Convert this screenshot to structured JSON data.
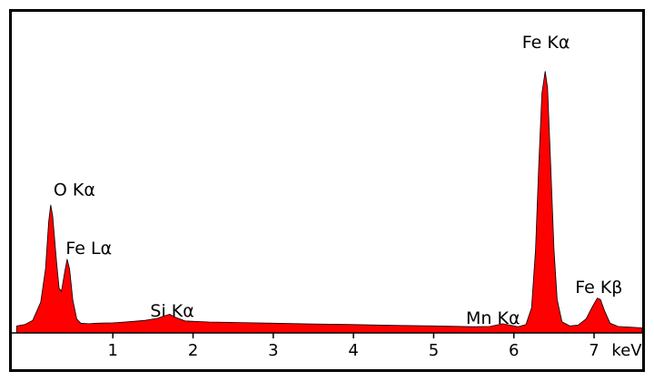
{
  "chart_data": {
    "type": "area",
    "title": "",
    "xlabel": "keV",
    "ylabel": "",
    "xlim": [
      -0.26,
      7.6
    ],
    "ylim": [
      0,
      100
    ],
    "grid": false,
    "legend": "none",
    "colors": {
      "fill": "#ff0000",
      "stroke": "#000000",
      "frame": "#000000"
    },
    "xticks": [
      1,
      2,
      3,
      4,
      5,
      6,
      7
    ],
    "peaks_labels": [
      {
        "text": "O Kα",
        "x": 0.52,
        "y": 48
      },
      {
        "text": "Fe Lα",
        "x": 0.7,
        "y": 27
      },
      {
        "text": "Si Kα",
        "x": 1.74,
        "y": 4.5
      },
      {
        "text": "Mn Kα",
        "x": 5.74,
        "y": 2
      },
      {
        "text": "Fe Kα",
        "x": 6.4,
        "y": 101
      },
      {
        "text": "Fe Kβ",
        "x": 7.06,
        "y": 13
      }
    ],
    "series": [
      {
        "values": [
          [
            -0.2,
            2.5
          ],
          [
            -0.1,
            3
          ],
          [
            0.0,
            4.5
          ],
          [
            0.1,
            11
          ],
          [
            0.16,
            23
          ],
          [
            0.2,
            40
          ],
          [
            0.225,
            46
          ],
          [
            0.25,
            42
          ],
          [
            0.3,
            25
          ],
          [
            0.33,
            16
          ],
          [
            0.36,
            15
          ],
          [
            0.4,
            22
          ],
          [
            0.43,
            26.5
          ],
          [
            0.46,
            23
          ],
          [
            0.5,
            12
          ],
          [
            0.55,
            5
          ],
          [
            0.6,
            3.5
          ],
          [
            0.7,
            3.3
          ],
          [
            0.8,
            3.5
          ],
          [
            1.0,
            3.6
          ],
          [
            1.2,
            4
          ],
          [
            1.4,
            4.5
          ],
          [
            1.55,
            5.2
          ],
          [
            1.65,
            6.2
          ],
          [
            1.71,
            6.7
          ],
          [
            1.78,
            5.6
          ],
          [
            1.9,
            4.3
          ],
          [
            2.2,
            3.9
          ],
          [
            2.6,
            3.7
          ],
          [
            3.0,
            3.5
          ],
          [
            3.5,
            3.2
          ],
          [
            4.0,
            3
          ],
          [
            4.5,
            2.7
          ],
          [
            5.0,
            2.5
          ],
          [
            5.5,
            2.2
          ],
          [
            5.7,
            2.3
          ],
          [
            5.86,
            3.3
          ],
          [
            5.95,
            2.8
          ],
          [
            6.05,
            2.2
          ],
          [
            6.15,
            3
          ],
          [
            6.22,
            9
          ],
          [
            6.27,
            30
          ],
          [
            6.31,
            60
          ],
          [
            6.35,
            86
          ],
          [
            6.39,
            94
          ],
          [
            6.42,
            88
          ],
          [
            6.46,
            60
          ],
          [
            6.5,
            30
          ],
          [
            6.54,
            12
          ],
          [
            6.6,
            4
          ],
          [
            6.7,
            2.5
          ],
          [
            6.8,
            2.8
          ],
          [
            6.9,
            5
          ],
          [
            6.98,
            9.5
          ],
          [
            7.04,
            12.5
          ],
          [
            7.08,
            12
          ],
          [
            7.13,
            8
          ],
          [
            7.2,
            3.5
          ],
          [
            7.3,
            2.3
          ],
          [
            7.5,
            2
          ],
          [
            7.6,
            1.8
          ]
        ]
      }
    ]
  }
}
